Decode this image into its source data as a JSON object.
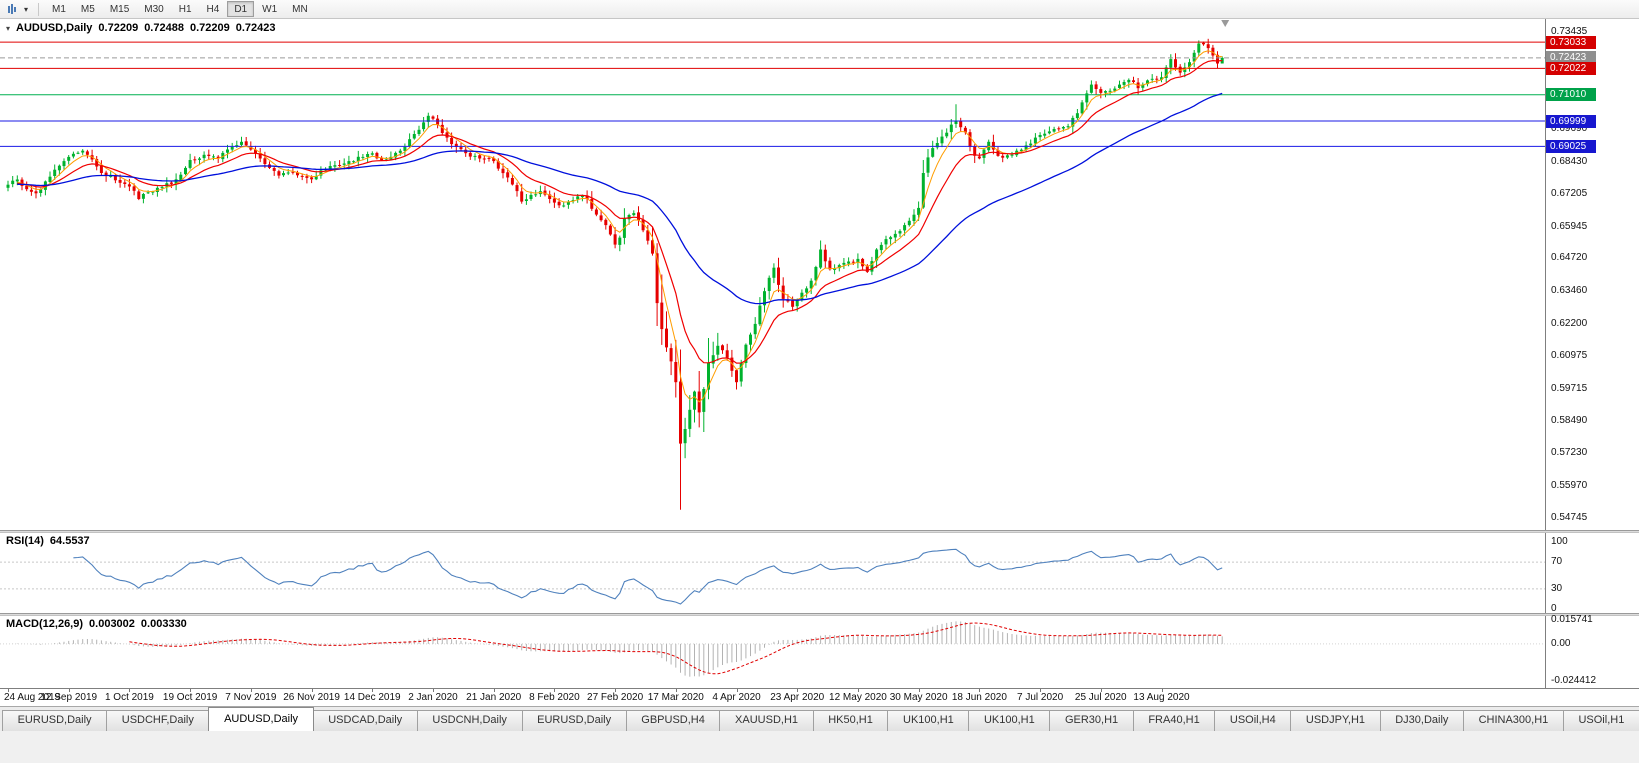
{
  "toolbar": {
    "timeframes": [
      "M1",
      "M5",
      "M15",
      "M30",
      "H1",
      "H4",
      "D1",
      "W1",
      "MN"
    ],
    "active_timeframe": "D1"
  },
  "icons": {
    "dropdown_caret": "▾"
  },
  "chart": {
    "symbol_period": "AUDUSD,Daily",
    "ohlc": {
      "open": "0.72209",
      "high": "0.72488",
      "low": "0.72209",
      "close": "0.72423"
    },
    "current_price": 0.72423,
    "price_scale_ticks": [
      "0.73435",
      "0.69690",
      "0.68430",
      "0.67205",
      "0.65945",
      "0.64720",
      "0.63460",
      "0.62200",
      "0.60975",
      "0.59715",
      "0.58490",
      "0.57230",
      "0.55970",
      "0.54745"
    ],
    "price_badges": [
      {
        "value": "0.73033",
        "price": 0.73033,
        "color": "#d40000",
        "kind": "resistance-line-label"
      },
      {
        "value": "0.72423",
        "price": 0.72423,
        "color": "#8f8f8f",
        "kind": "current-price-label"
      },
      {
        "value": "0.72022",
        "price": 0.72022,
        "color": "#d40000",
        "kind": "resistance-line-label"
      },
      {
        "value": "0.71010",
        "price": 0.7101,
        "color": "#00a24a",
        "kind": "support-line-label"
      },
      {
        "value": "0.69999",
        "price": 0.69999,
        "color": "#1717cf",
        "kind": "support-line-label"
      },
      {
        "value": "0.69025",
        "price": 0.69025,
        "color": "#1717cf",
        "kind": "support-line-label"
      }
    ],
    "hlines": [
      {
        "price": 0.73033,
        "color": "#e00000"
      },
      {
        "price": 0.72022,
        "color": "#e00000"
      },
      {
        "price": 0.7101,
        "color": "#00b050"
      },
      {
        "price": 0.69999,
        "color": "#1a1ae6"
      },
      {
        "price": 0.69025,
        "color": "#1a1ae6"
      }
    ]
  },
  "chart_data": {
    "type": "candlestick",
    "symbol": "AUDUSD",
    "period": "Daily",
    "current_ohlc": {
      "open": 0.72209,
      "high": 0.72488,
      "low": 0.72209,
      "close": 0.72423
    },
    "x_labels": [
      "24 Aug 2019",
      "12 Sep 2019",
      "1 Oct 2019",
      "19 Oct 2019",
      "7 Nov 2019",
      "26 Nov 2019",
      "14 Dec 2019",
      "2 Jan 2020",
      "21 Jan 2020",
      "8 Feb 2020",
      "27 Feb 2020",
      "17 Mar 2020",
      "4 Apr 2020",
      "23 Apr 2020",
      "12 May 2020",
      "30 May 2020",
      "18 Jun 2020",
      "7 Jul 2020",
      "25 Jul 2020",
      "13 Aug 2020"
    ],
    "candles_per_label": 13,
    "price_axis_range": [
      0.5428,
      0.7392
    ],
    "close_anchors": [
      [
        0,
        0.6755
      ],
      [
        2,
        0.6775
      ],
      [
        4,
        0.6738
      ],
      [
        6,
        0.6722
      ],
      [
        8,
        0.6768
      ],
      [
        11,
        0.6828
      ],
      [
        13,
        0.6862
      ],
      [
        16,
        0.6886
      ],
      [
        18,
        0.6852
      ],
      [
        20,
        0.68
      ],
      [
        23,
        0.6772
      ],
      [
        26,
        0.6748
      ],
      [
        28,
        0.67
      ],
      [
        30,
        0.6726
      ],
      [
        33,
        0.6746
      ],
      [
        36,
        0.6776
      ],
      [
        39,
        0.685
      ],
      [
        42,
        0.687
      ],
      [
        45,
        0.6856
      ],
      [
        48,
        0.69
      ],
      [
        50,
        0.692
      ],
      [
        52,
        0.689
      ],
      [
        54,
        0.6856
      ],
      [
        56,
        0.682
      ],
      [
        58,
        0.679
      ],
      [
        61,
        0.6802
      ],
      [
        63,
        0.6786
      ],
      [
        65,
        0.6776
      ],
      [
        67,
        0.681
      ],
      [
        70,
        0.683
      ],
      [
        73,
        0.6846
      ],
      [
        76,
        0.6862
      ],
      [
        78,
        0.6876
      ],
      [
        80,
        0.685
      ],
      [
        82,
        0.6862
      ],
      [
        84,
        0.6886
      ],
      [
        86,
        0.693
      ],
      [
        88,
        0.6966
      ],
      [
        90,
        0.702
      ],
      [
        92,
        0.6986
      ],
      [
        94,
        0.6936
      ],
      [
        96,
        0.69
      ],
      [
        98,
        0.6876
      ],
      [
        101,
        0.6856
      ],
      [
        104,
        0.6846
      ],
      [
        106,
        0.68
      ],
      [
        108,
        0.6756
      ],
      [
        110,
        0.669
      ],
      [
        112,
        0.6716
      ],
      [
        114,
        0.673
      ],
      [
        116,
        0.67
      ],
      [
        118,
        0.6676
      ],
      [
        120,
        0.669
      ],
      [
        122,
        0.671
      ],
      [
        124,
        0.67
      ],
      [
        126,
        0.664
      ],
      [
        128,
        0.66
      ],
      [
        130,
        0.6525
      ],
      [
        131,
        0.6552
      ],
      [
        132,
        0.6625
      ],
      [
        134,
        0.6646
      ],
      [
        136,
        0.658
      ],
      [
        137,
        0.654
      ],
      [
        138,
        0.649
      ],
      [
        139,
        0.63
      ],
      [
        140,
        0.62
      ],
      [
        141,
        0.613
      ],
      [
        142,
        0.6076
      ],
      [
        143,
        0.5996
      ],
      [
        144,
        0.576
      ],
      [
        145,
        0.5816
      ],
      [
        146,
        0.589
      ],
      [
        147,
        0.596
      ],
      [
        148,
        0.588
      ],
      [
        149,
        0.597
      ],
      [
        150,
        0.607
      ],
      [
        151,
        0.61
      ],
      [
        152,
        0.6136
      ],
      [
        154,
        0.609
      ],
      [
        155,
        0.604
      ],
      [
        156,
        0.5996
      ],
      [
        157,
        0.607
      ],
      [
        158,
        0.614
      ],
      [
        160,
        0.622
      ],
      [
        162,
        0.6346
      ],
      [
        164,
        0.6436
      ],
      [
        165,
        0.637
      ],
      [
        166,
        0.6316
      ],
      [
        168,
        0.6286
      ],
      [
        170,
        0.634
      ],
      [
        172,
        0.6386
      ],
      [
        174,
        0.6506
      ],
      [
        176,
        0.643
      ],
      [
        178,
        0.6446
      ],
      [
        180,
        0.646
      ],
      [
        182,
        0.647
      ],
      [
        184,
        0.642
      ],
      [
        186,
        0.6506
      ],
      [
        188,
        0.6546
      ],
      [
        190,
        0.6566
      ],
      [
        192,
        0.66
      ],
      [
        194,
        0.664
      ],
      [
        195,
        0.6666
      ],
      [
        196,
        0.68
      ],
      [
        197,
        0.686
      ],
      [
        198,
        0.6896
      ],
      [
        200,
        0.694
      ],
      [
        202,
        0.6986
      ],
      [
        203,
        0.7
      ],
      [
        204,
        0.6976
      ],
      [
        205,
        0.6956
      ],
      [
        206,
        0.69
      ],
      [
        207,
        0.6866
      ],
      [
        208,
        0.6856
      ],
      [
        209,
        0.689
      ],
      [
        210,
        0.692
      ],
      [
        211,
        0.689
      ],
      [
        212,
        0.6866
      ],
      [
        214,
        0.6868
      ],
      [
        216,
        0.6886
      ],
      [
        218,
        0.6906
      ],
      [
        220,
        0.6936
      ],
      [
        221,
        0.6946
      ],
      [
        223,
        0.696
      ],
      [
        225,
        0.697
      ],
      [
        227,
        0.698
      ],
      [
        229,
        0.703
      ],
      [
        231,
        0.7106
      ],
      [
        232,
        0.714
      ],
      [
        234,
        0.7108
      ],
      [
        236,
        0.7116
      ],
      [
        238,
        0.714
      ],
      [
        240,
        0.7158
      ],
      [
        242,
        0.7126
      ],
      [
        244,
        0.7156
      ],
      [
        246,
        0.716
      ],
      [
        247,
        0.7168
      ],
      [
        248,
        0.7206
      ],
      [
        249,
        0.7238
      ],
      [
        250,
        0.7206
      ],
      [
        251,
        0.7186
      ],
      [
        252,
        0.7206
      ],
      [
        253,
        0.7226
      ],
      [
        254,
        0.7262
      ],
      [
        255,
        0.7298
      ],
      [
        256,
        0.7295
      ],
      [
        257,
        0.728
      ],
      [
        258,
        0.7252
      ],
      [
        259,
        0.7221
      ],
      [
        260,
        0.72423
      ]
    ],
    "wick_overrides": {
      "90": {
        "h": 0.7032
      },
      "139": {
        "l": 0.6212
      },
      "144": {
        "l": 0.5506
      },
      "203": {
        "h": 0.7064
      },
      "256": {
        "h": 0.7305
      }
    },
    "last_candle": {
      "o": 0.72209,
      "h": 0.72488,
      "l": 0.72209,
      "c": 0.72423
    },
    "colors": {
      "bull": "#00b22d",
      "bear": "#e60000"
    },
    "moving_averages": [
      {
        "period": 5,
        "color": "#ff9d00",
        "width": 1
      },
      {
        "period": 13,
        "color": "#f00000",
        "width": 1.2
      },
      {
        "period": 45,
        "color": "#0010dc",
        "width": 1.3
      }
    ]
  },
  "rsi": {
    "name": "RSI(14)",
    "value": "64.5537",
    "period": 14,
    "levels": [
      70,
      30
    ],
    "scale": [
      {
        "label": "100",
        "v": 100
      },
      {
        "label": "70",
        "v": 70
      },
      {
        "label": "30",
        "v": 30
      },
      {
        "label": "0",
        "v": 0
      }
    ],
    "color": "#4f81bd"
  },
  "macd": {
    "name": "MACD(12,26,9)",
    "value_main": "0.003002",
    "value_signal": "0.003330",
    "fast": 12,
    "slow": 26,
    "signal": 9,
    "histogram_color": "#b3b3b3",
    "signal_color": "#e00000",
    "scale": [
      {
        "label": "0.015741",
        "v": 0.015741
      },
      {
        "label": "0.00",
        "v": 0
      },
      {
        "label": "-0.024412",
        "v": -0.024412
      }
    ]
  },
  "tabs": [
    "EURUSD,Daily",
    "USDCHF,Daily",
    "AUDUSD,Daily",
    "USDCAD,Daily",
    "USDCNH,Daily",
    "EURUSD,Daily",
    "GBPUSD,H4",
    "XAUUSD,H1",
    "HK50,H1",
    "UK100,H1",
    "UK100,H1",
    "GER30,H1",
    "FRA40,H1",
    "USOil,H4",
    "USDJPY,H1",
    "DJ30,Daily",
    "CHINA300,H1",
    "USOil,H1"
  ],
  "active_tab_index": 2
}
